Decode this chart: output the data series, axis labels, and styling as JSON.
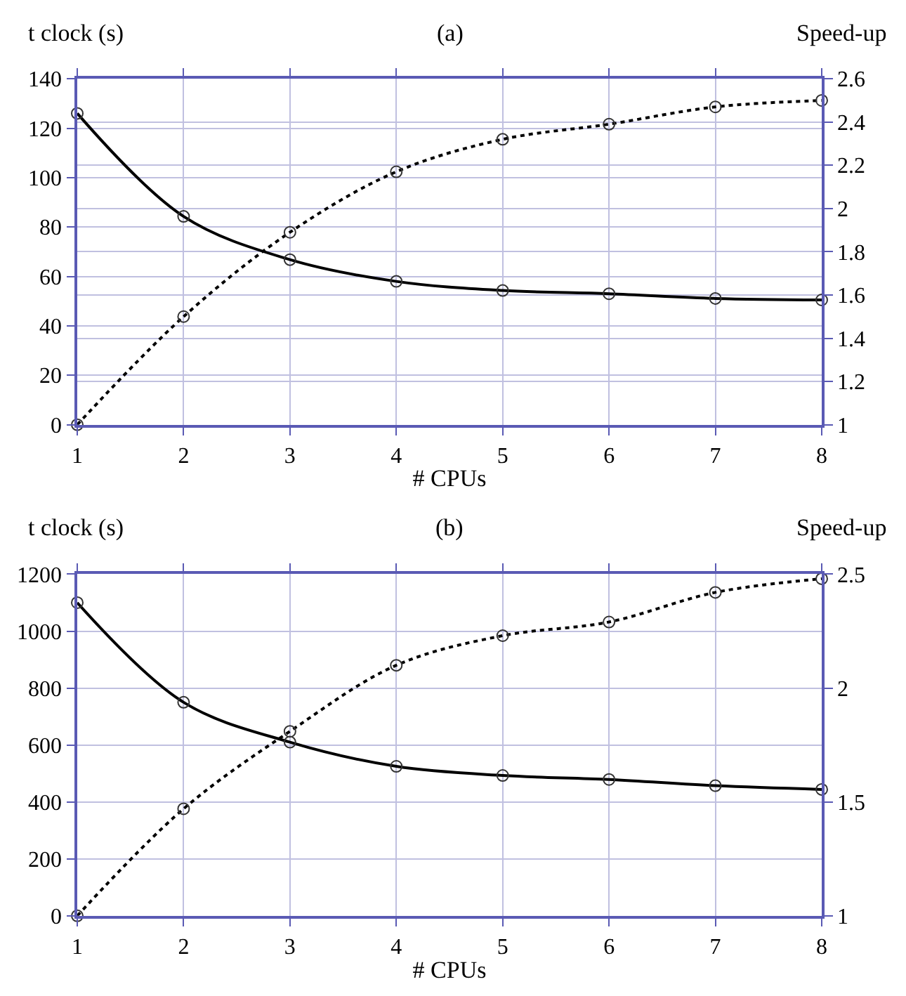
{
  "chart_data": [
    {
      "type": "line",
      "title": "(a)",
      "xlabel": "# CPUs",
      "ylabel": "t clock (s)",
      "y2label": "Speed-up",
      "x": [
        1,
        2,
        3,
        4,
        5,
        6,
        7,
        8
      ],
      "xlim": [
        1,
        8
      ],
      "xticks": [
        1,
        2,
        3,
        4,
        5,
        6,
        7,
        8
      ],
      "ylim": [
        0,
        140
      ],
      "yticks": [
        0,
        20,
        40,
        60,
        80,
        100,
        120,
        140
      ],
      "y2lim": [
        1,
        2.6
      ],
      "y2ticks": [
        1,
        1.2,
        1.4,
        1.6,
        1.8,
        2,
        2.2,
        2.4,
        2.6
      ],
      "grid": true,
      "marker": "circle",
      "series": [
        {
          "color": "#000000",
          "line_style": "solid",
          "values": [
            126,
            84.3,
            66.8,
            58,
            54.3,
            53,
            51.1,
            50.5
          ]
        },
        {
          "color": "#000000",
          "line_style": "dotted",
          "axis": "y2",
          "values": [
            1,
            1.5,
            1.89,
            2.17,
            2.32,
            2.39,
            2.47,
            2.5
          ]
        }
      ]
    },
    {
      "type": "line",
      "title": "(b)",
      "xlabel": "# CPUs",
      "ylabel": "t clock (s)",
      "y2label": "Speed-up",
      "x": [
        1,
        2,
        3,
        4,
        5,
        6,
        7,
        8
      ],
      "xlim": [
        1,
        8
      ],
      "xticks": [
        1,
        2,
        3,
        4,
        5,
        6,
        7,
        8
      ],
      "ylim": [
        0,
        1200
      ],
      "yticks": [
        0,
        200,
        400,
        600,
        800,
        1000,
        1200
      ],
      "y2lim": [
        1,
        2.5
      ],
      "y2ticks": [
        1,
        1.5,
        2,
        2.5
      ],
      "grid": true,
      "marker": "circle",
      "series": [
        {
          "color": "#000000",
          "line_style": "solid",
          "values": [
            1100,
            750,
            610,
            525,
            493,
            479,
            457,
            444
          ]
        },
        {
          "color": "#000000",
          "line_style": "dotted",
          "axis": "y2",
          "values": [
            1,
            1.47,
            1.81,
            2.1,
            2.23,
            2.29,
            2.42,
            2.48
          ]
        }
      ]
    }
  ]
}
